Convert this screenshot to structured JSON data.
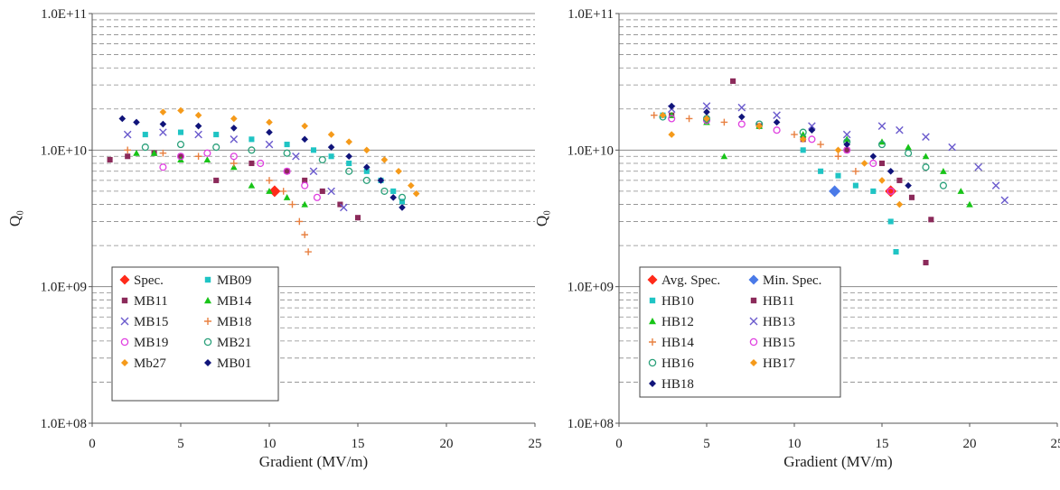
{
  "chart_data": [
    {
      "type": "scatter",
      "title": "",
      "xlabel": "Gradient (MV/m)",
      "ylabel": "Q₀",
      "xlim": [
        0,
        25
      ],
      "ylim": [
        100000000.0,
        100000000000.0
      ],
      "yscale": "log",
      "xticks": [
        "0",
        "5",
        "10",
        "15",
        "20",
        "25"
      ],
      "yticks": [
        "1.0E+08",
        "1.0E+09",
        "1.0E+10",
        "1.0E+11"
      ],
      "grid": "horizontal dashed minor, solid major",
      "legend": "bottom-left",
      "series": [
        {
          "name": "Spec.",
          "marker": "diamond",
          "color": "#ff2a1a",
          "large": true,
          "points": [
            [
              10.3,
              5000000000.0
            ]
          ]
        },
        {
          "name": "MB09",
          "marker": "square",
          "color": "#1fc4c4",
          "points": [
            [
              3,
              13000000000.0
            ],
            [
              5,
              13500000000.0
            ],
            [
              7,
              13000000000.0
            ],
            [
              9,
              12000000000.0
            ],
            [
              11,
              11000000000.0
            ],
            [
              12.5,
              10000000000.0
            ],
            [
              13.5,
              9000000000.0
            ],
            [
              14.5,
              8000000000.0
            ],
            [
              15.5,
              7000000000.0
            ],
            [
              16.3,
              6000000000.0
            ],
            [
              17,
              5000000000.0
            ],
            [
              17.5,
              4200000000.0
            ]
          ]
        },
        {
          "name": "MB11",
          "marker": "square",
          "color": "#8b2a5a",
          "points": [
            [
              1,
              8500000000.0
            ],
            [
              2,
              9000000000.0
            ],
            [
              3.5,
              9500000000.0
            ],
            [
              5,
              9000000000.0
            ],
            [
              7,
              6000000000.0
            ],
            [
              9,
              8000000000.0
            ],
            [
              11,
              7000000000.0
            ],
            [
              12,
              6000000000.0
            ],
            [
              13,
              5000000000.0
            ],
            [
              14,
              4000000000.0
            ],
            [
              15,
              3200000000.0
            ]
          ]
        },
        {
          "name": "MB14",
          "marker": "triangle",
          "color": "#18c418",
          "points": [
            [
              2.5,
              9500000000.0
            ],
            [
              3.5,
              9500000000.0
            ],
            [
              5,
              8500000000.0
            ],
            [
              6.5,
              8500000000.0
            ],
            [
              8,
              7500000000.0
            ],
            [
              9,
              5500000000.0
            ],
            [
              10,
              5000000000.0
            ],
            [
              11,
              4500000000.0
            ],
            [
              12,
              4000000000.0
            ]
          ]
        },
        {
          "name": "MB15",
          "marker": "x",
          "color": "#6a5acd",
          "points": [
            [
              2,
              13000000000.0
            ],
            [
              4,
              13500000000.0
            ],
            [
              6,
              13000000000.0
            ],
            [
              8,
              12000000000.0
            ],
            [
              10,
              11000000000.0
            ],
            [
              11.5,
              9000000000.0
            ],
            [
              12.5,
              7000000000.0
            ],
            [
              13.5,
              5000000000.0
            ],
            [
              14.2,
              3800000000.0
            ]
          ]
        },
        {
          "name": "MB18",
          "marker": "plus",
          "color": "#e88040",
          "points": [
            [
              2,
              10000000000.0
            ],
            [
              4,
              9500000000.0
            ],
            [
              6,
              9000000000.0
            ],
            [
              8,
              8000000000.0
            ],
            [
              10,
              6000000000.0
            ],
            [
              10.8,
              5000000000.0
            ],
            [
              11.3,
              4000000000.0
            ],
            [
              11.7,
              3000000000.0
            ],
            [
              12,
              2400000000.0
            ],
            [
              12.2,
              1800000000.0
            ]
          ]
        },
        {
          "name": "MB19",
          "marker": "circle",
          "color": "#e040e0",
          "points": [
            [
              4,
              7500000000.0
            ],
            [
              5,
              9000000000.0
            ],
            [
              6.5,
              9500000000.0
            ],
            [
              8,
              9000000000.0
            ],
            [
              9.5,
              8000000000.0
            ],
            [
              11,
              7000000000.0
            ],
            [
              12,
              5500000000.0
            ],
            [
              12.7,
              4500000000.0
            ]
          ]
        },
        {
          "name": "MB21",
          "marker": "circle",
          "color": "#2aa07a",
          "points": [
            [
              3,
              10500000000.0
            ],
            [
              5,
              11000000000.0
            ],
            [
              7,
              10500000000.0
            ],
            [
              9,
              10000000000.0
            ],
            [
              11,
              9500000000.0
            ],
            [
              13,
              8500000000.0
            ],
            [
              14.5,
              7000000000.0
            ],
            [
              15.5,
              6000000000.0
            ],
            [
              16.5,
              5000000000.0
            ],
            [
              17.5,
              4500000000.0
            ]
          ]
        },
        {
          "name": "Mb27",
          "marker": "diamond",
          "color": "#f59a1a",
          "points": [
            [
              4,
              19000000000.0
            ],
            [
              5,
              19500000000.0
            ],
            [
              6,
              18000000000.0
            ],
            [
              8,
              17000000000.0
            ],
            [
              10,
              16000000000.0
            ],
            [
              12,
              15000000000.0
            ],
            [
              13.5,
              13000000000.0
            ],
            [
              14.5,
              11500000000.0
            ],
            [
              15.5,
              10000000000.0
            ],
            [
              16.5,
              8500000000.0
            ],
            [
              17.3,
              7000000000.0
            ],
            [
              18,
              5500000000.0
            ],
            [
              18.3,
              4800000000.0
            ]
          ]
        },
        {
          "name": "MB01",
          "marker": "diamond",
          "color": "#10147a",
          "points": [
            [
              1.7,
              17000000000.0
            ],
            [
              2.5,
              16000000000.0
            ],
            [
              4,
              15500000000.0
            ],
            [
              6,
              15000000000.0
            ],
            [
              8,
              14500000000.0
            ],
            [
              10,
              13500000000.0
            ],
            [
              12,
              12000000000.0
            ],
            [
              13.5,
              10500000000.0
            ],
            [
              14.5,
              9000000000.0
            ],
            [
              15.5,
              7500000000.0
            ],
            [
              16.3,
              6000000000.0
            ],
            [
              17,
              4500000000.0
            ],
            [
              17.5,
              3800000000.0
            ]
          ]
        }
      ]
    },
    {
      "type": "scatter",
      "title": "",
      "xlabel": "Gradient (MV/m)",
      "ylabel": "Q₀",
      "xlim": [
        0,
        25
      ],
      "ylim": [
        100000000.0,
        100000000000.0
      ],
      "yscale": "log",
      "xticks": [
        "0",
        "5",
        "10",
        "15",
        "20",
        "25"
      ],
      "yticks": [
        "1.0E+08",
        "1.0E+09",
        "1.0E+10",
        "1.0E+11"
      ],
      "grid": "horizontal dashed minor, solid major",
      "legend": "bottom-left",
      "series": [
        {
          "name": "Avg. Spec.",
          "marker": "diamond",
          "color": "#ff2a1a",
          "large": true,
          "points": [
            [
              15.5,
              5000000000.0
            ]
          ]
        },
        {
          "name": "Min. Spec.",
          "marker": "diamond",
          "color": "#4a7ae8",
          "large": true,
          "points": [
            [
              12.3,
              5000000000.0
            ]
          ]
        },
        {
          "name": "HB10",
          "marker": "square",
          "color": "#1fc4c4",
          "points": [
            [
              2.5,
              18000000000.0
            ],
            [
              5,
              17000000000.0
            ],
            [
              8,
              15000000000.0
            ],
            [
              10.5,
              10000000000.0
            ],
            [
              11.5,
              7000000000.0
            ],
            [
              12.5,
              6500000000.0
            ],
            [
              13.5,
              5500000000.0
            ],
            [
              14.5,
              5000000000.0
            ],
            [
              15.5,
              3000000000.0
            ],
            [
              15.8,
              1800000000.0
            ]
          ]
        },
        {
          "name": "HB11",
          "marker": "square",
          "color": "#8b2a5a",
          "points": [
            [
              6.5,
              32000000000.0
            ],
            [
              3,
              18000000000.0
            ],
            [
              5,
              17000000000.0
            ],
            [
              8,
              15000000000.0
            ],
            [
              10.5,
              12000000000.0
            ],
            [
              13,
              10000000000.0
            ],
            [
              15,
              8000000000.0
            ],
            [
              16,
              6000000000.0
            ],
            [
              16.7,
              4500000000.0
            ],
            [
              17.8,
              3100000000.0
            ],
            [
              17.5,
              1500000000.0
            ]
          ]
        },
        {
          "name": "HB12",
          "marker": "triangle",
          "color": "#18c418",
          "points": [
            [
              3,
              18000000000.0
            ],
            [
              5,
              16000000000.0
            ],
            [
              6,
              9000000000.0
            ],
            [
              8,
              15000000000.0
            ],
            [
              10.5,
              13000000000.0
            ],
            [
              13,
              12000000000.0
            ],
            [
              15,
              11500000000.0
            ],
            [
              16.5,
              10500000000.0
            ],
            [
              17.5,
              9000000000.0
            ],
            [
              18.5,
              7000000000.0
            ],
            [
              19.5,
              5000000000.0
            ],
            [
              20,
              4000000000.0
            ]
          ]
        },
        {
          "name": "HB13",
          "marker": "x",
          "color": "#6a5acd",
          "points": [
            [
              3,
              20000000000.0
            ],
            [
              5,
              21000000000.0
            ],
            [
              7,
              20500000000.0
            ],
            [
              9,
              18000000000.0
            ],
            [
              11,
              15000000000.0
            ],
            [
              13,
              13000000000.0
            ],
            [
              15,
              15000000000.0
            ],
            [
              16,
              14000000000.0
            ],
            [
              17.5,
              12500000000.0
            ],
            [
              19,
              10500000000.0
            ],
            [
              20.5,
              7500000000.0
            ],
            [
              21.5,
              5500000000.0
            ],
            [
              22,
              4300000000.0
            ]
          ]
        },
        {
          "name": "HB14",
          "marker": "plus",
          "color": "#e88040",
          "points": [
            [
              2,
              18000000000.0
            ],
            [
              4,
              17000000000.0
            ],
            [
              6,
              16000000000.0
            ],
            [
              8,
              15000000000.0
            ],
            [
              10,
              13000000000.0
            ],
            [
              11.5,
              11000000000.0
            ],
            [
              12.5,
              9000000000.0
            ],
            [
              13.5,
              7000000000.0
            ]
          ]
        },
        {
          "name": "HB15",
          "marker": "circle",
          "color": "#e040e0",
          "points": [
            [
              3,
              17000000000.0
            ],
            [
              5,
              16500000000.0
            ],
            [
              7,
              15500000000.0
            ],
            [
              9,
              14000000000.0
            ],
            [
              11,
              12000000000.0
            ],
            [
              13,
              10000000000.0
            ],
            [
              14.5,
              8000000000.0
            ],
            [
              15.5,
              5000000000.0
            ]
          ]
        },
        {
          "name": "HB16",
          "marker": "circle",
          "color": "#2aa07a",
          "points": [
            [
              2.5,
              17500000000.0
            ],
            [
              5,
              17000000000.0
            ],
            [
              8,
              15500000000.0
            ],
            [
              10.5,
              13500000000.0
            ],
            [
              13,
              11500000000.0
            ],
            [
              15,
              11000000000.0
            ],
            [
              16.5,
              9500000000.0
            ],
            [
              17.5,
              7500000000.0
            ],
            [
              18.5,
              5500000000.0
            ]
          ]
        },
        {
          "name": "HB17",
          "marker": "diamond",
          "color": "#f59a1a",
          "points": [
            [
              2.5,
              18000000000.0
            ],
            [
              3,
              13000000000.0
            ],
            [
              5,
              17000000000.0
            ],
            [
              8,
              15000000000.0
            ],
            [
              10.5,
              12000000000.0
            ],
            [
              12.5,
              10000000000.0
            ],
            [
              14,
              8000000000.0
            ],
            [
              15,
              6000000000.0
            ],
            [
              16,
              4000000000.0
            ]
          ]
        },
        {
          "name": "HB18",
          "marker": "diamond",
          "color": "#10147a",
          "points": [
            [
              3,
              21000000000.0
            ],
            [
              5,
              19000000000.0
            ],
            [
              7,
              17500000000.0
            ],
            [
              9,
              16000000000.0
            ],
            [
              11,
              14000000000.0
            ],
            [
              13,
              11000000000.0
            ],
            [
              14.5,
              9000000000.0
            ],
            [
              15.5,
              7000000000.0
            ],
            [
              16.5,
              5500000000.0
            ]
          ]
        }
      ]
    }
  ]
}
